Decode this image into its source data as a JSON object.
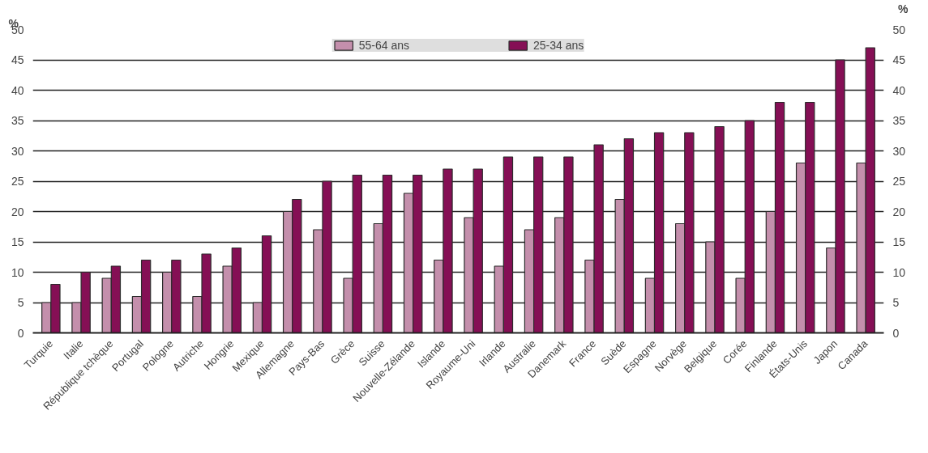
{
  "chart_data": {
    "type": "bar",
    "categories": [
      "Turquie",
      "Italie",
      "République tchèque",
      "Portugal",
      "Pologne",
      "Autriche",
      "Hongrie",
      "Mexique",
      "Allemagne",
      "Pays-Bas",
      "Grèce",
      "Suisse",
      "Nouvelle-Zélande",
      "Islande",
      "Royaume-Uni",
      "Irlande",
      "Australie",
      "Danemark",
      "France",
      "Suède",
      "Espagne",
      "Norvège",
      "Belgique",
      "Corée",
      "Finlande",
      "États-Unis",
      "Japon",
      "Canada"
    ],
    "series": [
      {
        "name": "55-64 ans",
        "color": "#c48fac",
        "values": [
          5,
          5,
          9,
          6,
          10,
          6,
          11,
          5,
          20,
          17,
          9,
          18,
          23,
          12,
          19,
          11,
          17,
          19,
          12,
          22,
          9,
          18,
          15,
          9,
          20,
          28,
          14,
          28
        ]
      },
      {
        "name": "25-34 ans",
        "color": "#850f55",
        "values": [
          8,
          10,
          11,
          12,
          12,
          13,
          14,
          16,
          22,
          25,
          26,
          26,
          26,
          27,
          27,
          29,
          29,
          29,
          31,
          32,
          33,
          33,
          34,
          35,
          38,
          38,
          45,
          47
        ]
      }
    ],
    "ylabel": "%",
    "y2label": "%",
    "ylim": [
      0,
      50
    ],
    "yticks": [
      0,
      5,
      10,
      15,
      20,
      25,
      30,
      35,
      40,
      45,
      50
    ],
    "y2lim": [
      0,
      50
    ],
    "y2ticks": [
      0,
      5,
      10,
      15,
      20,
      25,
      30,
      35,
      40,
      45,
      50
    ],
    "grid": "y",
    "legend": "top"
  }
}
